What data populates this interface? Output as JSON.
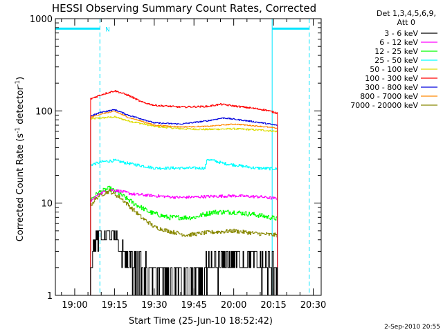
{
  "chart_data": {
    "type": "line",
    "title": "HESSI Observing Summary Count Rates, Corrected",
    "xlabel": "Start Time (25-Jun-10 18:52:42)",
    "ylabel_main": "Corrected Count Rate (s",
    "ylabel_sup1": "-1",
    "ylabel_mid": " detector",
    "ylabel_sup2": "-1",
    "ylabel_end": ")",
    "footer": "2-Sep-2010 20:55",
    "legend_header": [
      "Det 1,3,4,5,6,9,",
      "Att 0"
    ],
    "legend_placement": "right",
    "y_scale": "log",
    "ylim": [
      1,
      1000
    ],
    "y_ticks": [
      {
        "value": 1,
        "label": "1"
      },
      {
        "value": 10,
        "label": "10"
      },
      {
        "value": 100,
        "label": "100"
      },
      {
        "value": 1000,
        "label": "1000"
      }
    ],
    "xlim": [
      "18:52:42",
      "20:33:00"
    ],
    "x_ticks": [
      {
        "time": "19:00",
        "label": "19:00"
      },
      {
        "time": "19:15",
        "label": "19:15"
      },
      {
        "time": "19:30",
        "label": "19:30"
      },
      {
        "time": "19:45",
        "label": "19:45"
      },
      {
        "time": "20:00",
        "label": "20:00"
      },
      {
        "time": "20:15",
        "label": "20:15"
      },
      {
        "time": "20:30",
        "label": "20:30"
      }
    ],
    "night_bars": [
      {
        "start": "18:52:42",
        "end": "19:09:30",
        "y": 780
      },
      {
        "start": "20:14:30",
        "end": "20:28:30",
        "y": 780
      }
    ],
    "night_lines_solid": [
      "18:52:42",
      "20:14:30"
    ],
    "night_lines_dashed": [
      "19:09:30",
      "20:28:30"
    ],
    "saa_marker": {
      "time": "19:10:30",
      "label": "N"
    },
    "data_start": "19:06:00",
    "data_end": "20:16:30",
    "series": [
      {
        "name": "3 - 6 keV",
        "color": "#000000",
        "times": [
          "19:06",
          "19:07",
          "19:09",
          "19:11",
          "19:14",
          "19:17",
          "19:20",
          "19:23",
          "19:26",
          "19:30",
          "19:40",
          "19:45",
          "19:50",
          "19:55",
          "20:00",
          "20:05",
          "20:10",
          "20:16"
        ],
        "values": [
          2.2,
          3.3,
          4.2,
          4.6,
          4.4,
          3.2,
          2.5,
          2.0,
          1.7,
          1.6,
          1.5,
          1.5,
          1.7,
          2.2,
          2.4,
          2.4,
          2.2,
          1.8
        ]
      },
      {
        "name": "6 - 12 keV",
        "color": "#ff00ff",
        "times": [
          "19:06",
          "19:09",
          "19:13",
          "19:17",
          "19:22",
          "19:30",
          "19:40",
          "19:50",
          "20:00",
          "20:10",
          "20:16"
        ],
        "values": [
          10.5,
          12.5,
          14.0,
          13.5,
          12.5,
          12.0,
          11.5,
          11.8,
          12.0,
          11.7,
          11.2
        ]
      },
      {
        "name": "12 - 25 keV",
        "color": "#00ff00",
        "times": [
          "19:06",
          "19:09",
          "19:13",
          "19:17",
          "19:22",
          "19:28",
          "19:35",
          "19:45",
          "19:52",
          "20:00",
          "20:08",
          "20:16"
        ],
        "values": [
          11.0,
          13.0,
          14.5,
          12.5,
          10.0,
          8.0,
          7.0,
          7.0,
          8.0,
          8.0,
          7.5,
          6.8
        ]
      },
      {
        "name": "25 - 50 keV",
        "color": "#00ffff",
        "times": [
          "19:06",
          "19:10",
          "19:15",
          "19:20",
          "19:30",
          "19:40",
          "19:49",
          "19:50",
          "19:56",
          "20:00",
          "20:08",
          "20:16"
        ],
        "values": [
          26,
          28,
          29,
          27,
          24,
          24,
          24,
          30,
          27,
          26,
          24,
          23.5
        ]
      },
      {
        "name": "50 - 100 keV",
        "color": "#dddd00",
        "times": [
          "19:06",
          "19:10",
          "19:15",
          "19:20",
          "19:30",
          "19:40",
          "19:50",
          "20:00",
          "20:10",
          "20:16"
        ],
        "values": [
          82,
          84,
          86,
          78,
          68,
          64,
          63,
          64,
          62,
          60
        ]
      },
      {
        "name": "100 - 300 keV",
        "color": "#ff0000",
        "times": [
          "19:06",
          "19:10",
          "19:15",
          "19:20",
          "19:25",
          "19:30",
          "19:40",
          "19:50",
          "19:55",
          "20:00",
          "20:06",
          "20:12",
          "20:16"
        ],
        "values": [
          135,
          150,
          165,
          148,
          125,
          115,
          110,
          112,
          118,
          113,
          108,
          102,
          95
        ]
      },
      {
        "name": "300 - 800 keV",
        "color": "#0000dd",
        "times": [
          "19:06",
          "19:10",
          "19:15",
          "19:20",
          "19:30",
          "19:40",
          "19:50",
          "19:56",
          "20:02",
          "20:08",
          "20:16"
        ],
        "values": [
          88,
          97,
          103,
          90,
          74,
          72,
          78,
          84,
          80,
          76,
          70
        ]
      },
      {
        "name": "800 - 7000 keV",
        "color": "#ff8800",
        "times": [
          "19:06",
          "19:10",
          "19:15",
          "19:20",
          "19:30",
          "19:40",
          "19:50",
          "20:00",
          "20:10",
          "20:16"
        ],
        "values": [
          85,
          93,
          99,
          85,
          70,
          67,
          68,
          72,
          68,
          65
        ]
      },
      {
        "name": "7000 - 20000 keV",
        "color": "#888800",
        "times": [
          "19:06",
          "19:09",
          "19:13",
          "19:17",
          "19:21",
          "19:25",
          "19:30",
          "19:35",
          "19:42",
          "19:50",
          "20:00",
          "20:08",
          "20:16"
        ],
        "values": [
          9.5,
          12.0,
          13.5,
          11.5,
          9.0,
          7.0,
          5.5,
          5.0,
          4.5,
          4.8,
          5.0,
          4.7,
          4.5
        ]
      }
    ]
  }
}
